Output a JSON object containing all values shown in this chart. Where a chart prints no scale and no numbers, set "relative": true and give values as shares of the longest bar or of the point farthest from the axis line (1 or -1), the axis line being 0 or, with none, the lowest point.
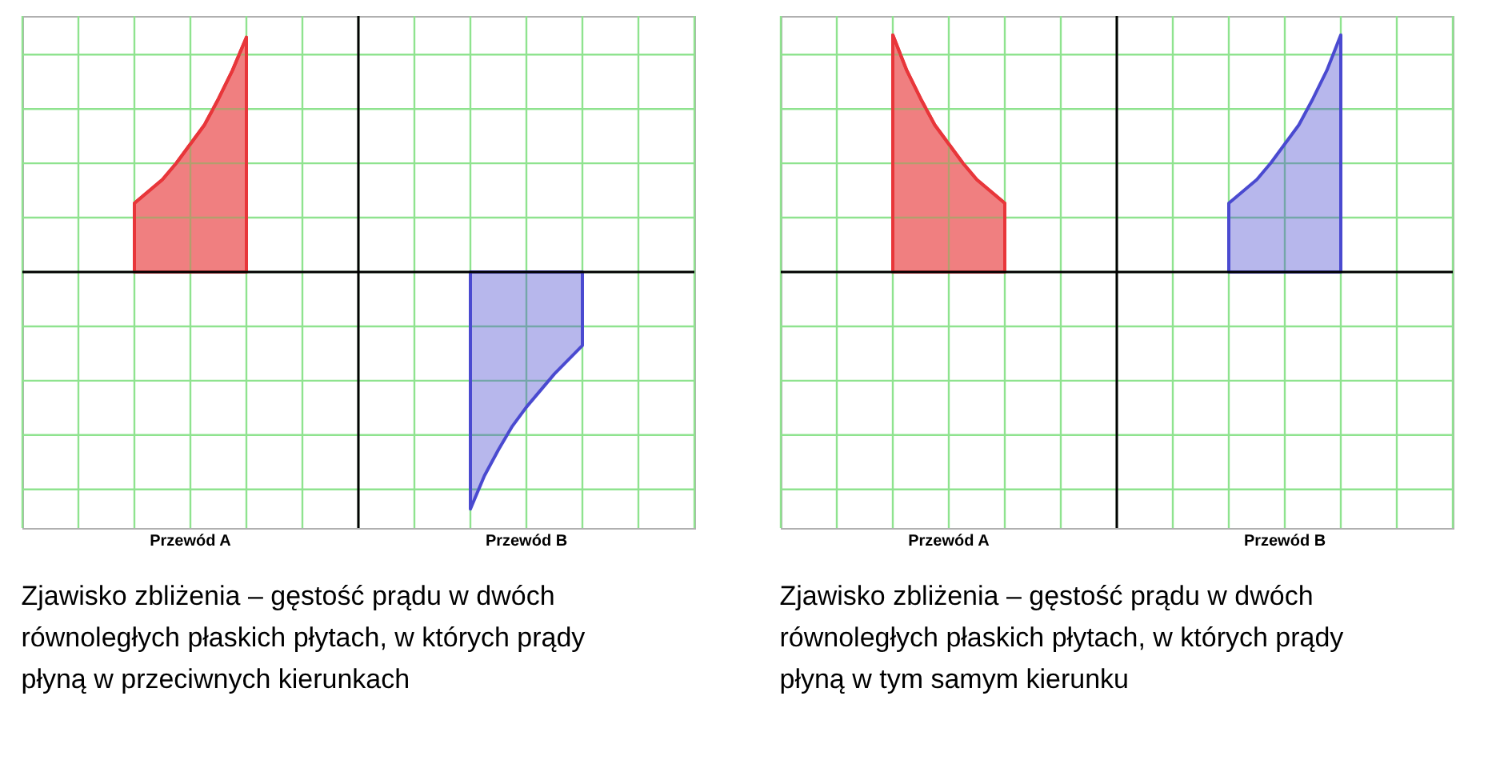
{
  "chart_data": [
    {
      "type": "area",
      "relative": true,
      "grid": true,
      "categories": [
        null,
        null,
        null,
        null,
        null,
        null,
        null,
        null,
        null,
        null,
        null,
        null,
        null,
        null,
        null,
        null,
        null,
        null,
        null,
        null,
        null,
        null,
        null,
        null,
        null,
        null,
        null,
        null,
        null,
        null,
        null,
        null,
        null,
        null,
        null,
        null,
        null,
        null,
        null,
        null,
        null,
        null,
        null,
        null,
        null,
        null,
        null,
        null,
        null
      ],
      "series": [
        {
          "color": "#e8363a",
          "values": [
            null,
            null,
            null,
            null,
            null,
            null,
            null,
            null,
            0.29,
            0.34,
            0.39,
            0.46,
            0.54,
            0.62,
            0.73,
            0.85,
            0.99,
            null,
            null,
            null,
            null,
            null,
            null,
            null,
            null,
            null,
            null,
            null,
            null,
            null,
            null,
            null,
            null,
            null,
            null,
            null,
            null,
            null,
            null,
            null,
            null,
            null,
            null,
            null,
            null,
            null,
            null,
            null,
            null
          ]
        },
        {
          "color": "#4a4ad0",
          "values": [
            null,
            null,
            null,
            null,
            null,
            null,
            null,
            null,
            null,
            null,
            null,
            null,
            null,
            null,
            null,
            null,
            null,
            null,
            null,
            null,
            null,
            null,
            null,
            null,
            null,
            null,
            null,
            null,
            null,
            null,
            null,
            null,
            -1,
            -0.86,
            -0.75,
            -0.65,
            -0.57,
            -0.5,
            -0.43,
            -0.37,
            -0.31,
            null,
            null,
            null,
            null,
            null,
            null,
            null,
            null
          ]
        }
      ],
      "annotations": [
        "Przewód A",
        "Przewód B",
        "Zjawisko zbliżenia – gęstość prądu w dwóch równoległych płaskich płytach, w których prądy płyną w przeciwnych kierunkach"
      ]
    },
    {
      "type": "area",
      "relative": true,
      "grid": true,
      "categories": [
        null,
        null,
        null,
        null,
        null,
        null,
        null,
        null,
        null,
        null,
        null,
        null,
        null,
        null,
        null,
        null,
        null,
        null,
        null,
        null,
        null,
        null,
        null,
        null,
        null,
        null,
        null,
        null,
        null,
        null,
        null,
        null,
        null,
        null,
        null,
        null,
        null,
        null,
        null,
        null,
        null,
        null,
        null,
        null,
        null,
        null,
        null,
        null,
        null
      ],
      "series": [
        {
          "color": "#e8363a",
          "values": [
            null,
            null,
            null,
            null,
            null,
            null,
            null,
            null,
            1,
            0.85,
            0.73,
            0.62,
            0.54,
            0.46,
            0.39,
            0.34,
            0.29,
            null,
            null,
            null,
            null,
            null,
            null,
            null,
            null,
            null,
            null,
            null,
            null,
            null,
            null,
            null,
            null,
            null,
            null,
            null,
            null,
            null,
            null,
            null,
            null,
            null,
            null,
            null,
            null,
            null,
            null,
            null,
            null
          ]
        },
        {
          "color": "#4a4ad0",
          "values": [
            null,
            null,
            null,
            null,
            null,
            null,
            null,
            null,
            null,
            null,
            null,
            null,
            null,
            null,
            null,
            null,
            null,
            null,
            null,
            null,
            null,
            null,
            null,
            null,
            null,
            null,
            null,
            null,
            null,
            null,
            null,
            null,
            0.29,
            0.34,
            0.39,
            0.46,
            0.54,
            0.62,
            0.73,
            0.85,
            1,
            null,
            null,
            null,
            null,
            null,
            null,
            null,
            null
          ]
        }
      ],
      "annotations": [
        "Przewód A",
        "Przewód B",
        "Zjawisko zbliżenia – gęstość prądu w dwóch równoległych płaskich płytach, w których prądy płyną w tym samym kierunku"
      ]
    }
  ]
}
